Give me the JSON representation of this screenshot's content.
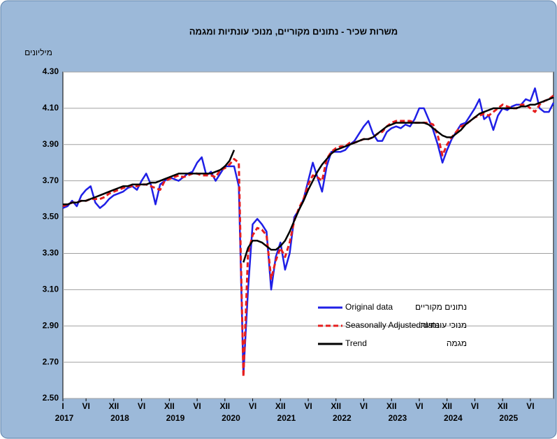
{
  "chart_data": {
    "type": "line",
    "title": "משרות שכיר - נתונים מקוריים, מנוכי עונתיות ומגמה",
    "y_unit": "מיליונים",
    "x": [
      "2017-01",
      "2017-02",
      "2017-03",
      "2017-04",
      "2017-05",
      "2017-06",
      "2017-07",
      "2017-08",
      "2017-09",
      "2017-10",
      "2017-11",
      "2017-12",
      "2018-01",
      "2018-02",
      "2018-03",
      "2018-04",
      "2018-05",
      "2018-06",
      "2018-07",
      "2018-08",
      "2018-09",
      "2018-10",
      "2018-11",
      "2018-12",
      "2019-01",
      "2019-02",
      "2019-03",
      "2019-04",
      "2019-05",
      "2019-06",
      "2019-07",
      "2019-08",
      "2019-09",
      "2019-10",
      "2019-11",
      "2019-12",
      "2020-01",
      "2020-02",
      "2020-03",
      "2020-04",
      "2020-05",
      "2020-06",
      "2020-07",
      "2020-08",
      "2020-09",
      "2020-10",
      "2020-11",
      "2020-12",
      "2021-01",
      "2021-02",
      "2021-03",
      "2021-04",
      "2021-05",
      "2021-06",
      "2021-07",
      "2021-08",
      "2021-09",
      "2021-10",
      "2021-11",
      "2021-12",
      "2022-01",
      "2022-02",
      "2022-03",
      "2022-04",
      "2022-05",
      "2022-06",
      "2022-07",
      "2022-08",
      "2022-09",
      "2022-10",
      "2022-11",
      "2022-12",
      "2023-01",
      "2023-02",
      "2023-03",
      "2023-04",
      "2023-05",
      "2023-06",
      "2023-07",
      "2023-08",
      "2023-09",
      "2023-10",
      "2023-11",
      "2023-12",
      "2024-01",
      "2024-02",
      "2024-03",
      "2024-04",
      "2024-05",
      "2024-06",
      "2024-07",
      "2024-08",
      "2024-09",
      "2024-10",
      "2024-11",
      "2024-12",
      "2025-01",
      "2025-02",
      "2025-03",
      "2025-04",
      "2025-05",
      "2025-06",
      "2025-07",
      "2025-08",
      "2025-09",
      "2025-10",
      "2025-11"
    ],
    "xticks": [
      {
        "value": "2017-01",
        "label": "I"
      },
      {
        "value": "2017-06",
        "label": "VI"
      },
      {
        "value": "2017-12",
        "label": "XII"
      },
      {
        "value": "2018-06",
        "label": "VI"
      },
      {
        "value": "2018-12",
        "label": "XII"
      },
      {
        "value": "2019-06",
        "label": "VI"
      },
      {
        "value": "2019-12",
        "label": "XII"
      },
      {
        "value": "2020-06",
        "label": "VI"
      },
      {
        "value": "2020-12",
        "label": "XII"
      },
      {
        "value": "2021-06",
        "label": "VI"
      },
      {
        "value": "2021-12",
        "label": "XII"
      },
      {
        "value": "2022-06",
        "label": "VI"
      },
      {
        "value": "2022-12",
        "label": "XII"
      },
      {
        "value": "2023-06",
        "label": "VI"
      },
      {
        "value": "2023-12",
        "label": "XII"
      },
      {
        "value": "2024-06",
        "label": "VI"
      },
      {
        "value": "2024-12",
        "label": "XII"
      },
      {
        "value": "2025-06",
        "label": "VI"
      }
    ],
    "year_labels": [
      {
        "value": "2017-01",
        "label": "2017"
      },
      {
        "value": "2018-01",
        "label": "2018"
      },
      {
        "value": "2019-01",
        "label": "2019"
      },
      {
        "value": "2020-01",
        "label": "2020"
      },
      {
        "value": "2021-01",
        "label": "2021"
      },
      {
        "value": "2022-01",
        "label": "2022"
      },
      {
        "value": "2023-01",
        "label": "2023"
      },
      {
        "value": "2024-01",
        "label": "2024"
      },
      {
        "value": "2025-01",
        "label": "2025"
      }
    ],
    "ylim": [
      2.5,
      4.3
    ],
    "yticks": [
      {
        "value": 2.5,
        "label": "2.50"
      },
      {
        "value": 2.7,
        "label": "2.70"
      },
      {
        "value": 2.9,
        "label": "2.90"
      },
      {
        "value": 3.1,
        "label": "3.10"
      },
      {
        "value": 3.3,
        "label": "3.30"
      },
      {
        "value": 3.5,
        "label": "3.50"
      },
      {
        "value": 3.7,
        "label": "3.70"
      },
      {
        "value": 3.9,
        "label": "3.90"
      },
      {
        "value": 4.1,
        "label": "4.10"
      },
      {
        "value": 4.3,
        "label": "4.30"
      }
    ],
    "grid": true,
    "series": [
      {
        "name": "Original data",
        "name_he": "נתונים מקוריים",
        "color": "#1f1fe6",
        "dash": false,
        "values": [
          3.55,
          3.56,
          3.59,
          3.56,
          3.62,
          3.65,
          3.67,
          3.58,
          3.55,
          3.57,
          3.6,
          3.62,
          3.63,
          3.64,
          3.66,
          3.67,
          3.65,
          3.7,
          3.74,
          3.68,
          3.57,
          3.68,
          3.7,
          3.72,
          3.71,
          3.7,
          3.72,
          3.74,
          3.75,
          3.8,
          3.83,
          3.73,
          3.75,
          3.7,
          3.74,
          3.78,
          3.78,
          3.78,
          3.67,
          2.63,
          3.1,
          3.46,
          3.49,
          3.46,
          3.42,
          3.1,
          3.28,
          3.36,
          3.21,
          3.3,
          3.5,
          3.54,
          3.6,
          3.7,
          3.8,
          3.72,
          3.64,
          3.78,
          3.86,
          3.86,
          3.86,
          3.87,
          3.9,
          3.92,
          3.96,
          4.0,
          4.03,
          3.96,
          3.92,
          3.92,
          3.97,
          3.99,
          4.0,
          3.99,
          4.01,
          4.0,
          4.04,
          4.1,
          4.1,
          4.04,
          3.98,
          3.9,
          3.8,
          3.87,
          3.93,
          3.97,
          4.01,
          4.02,
          4.06,
          4.1,
          4.15,
          4.04,
          4.06,
          3.98,
          4.06,
          4.1,
          4.09,
          4.11,
          4.12,
          4.12,
          4.15,
          4.14,
          4.21,
          4.1,
          4.08,
          4.08,
          4.13
        ]
      },
      {
        "name": "Seasonally Adjusted data",
        "name_he": "מנוכי עונתיות",
        "color": "#e61e1e",
        "dash": true,
        "values": [
          3.56,
          3.57,
          3.58,
          3.58,
          3.59,
          3.59,
          3.6,
          3.6,
          3.6,
          3.61,
          3.63,
          3.64,
          3.65,
          3.66,
          3.67,
          3.67,
          3.67,
          3.68,
          3.68,
          3.67,
          3.66,
          3.65,
          3.7,
          3.71,
          3.72,
          3.73,
          3.72,
          3.73,
          3.74,
          3.74,
          3.73,
          3.73,
          3.73,
          3.72,
          3.76,
          3.77,
          3.79,
          3.82,
          3.8,
          2.62,
          3.3,
          3.4,
          3.44,
          3.43,
          3.4,
          3.16,
          3.26,
          3.33,
          3.28,
          3.36,
          3.48,
          3.55,
          3.6,
          3.68,
          3.73,
          3.72,
          3.7,
          3.82,
          3.86,
          3.88,
          3.89,
          3.89,
          3.91,
          3.91,
          3.92,
          3.93,
          3.93,
          3.94,
          3.96,
          3.97,
          4.0,
          4.02,
          4.03,
          4.03,
          4.03,
          4.03,
          4.02,
          4.02,
          4.02,
          4.02,
          4.01,
          3.95,
          3.84,
          3.9,
          3.94,
          3.97,
          4.0,
          4.01,
          4.03,
          4.05,
          4.06,
          4.07,
          4.06,
          4.08,
          4.1,
          4.12,
          4.11,
          4.1,
          4.1,
          4.12,
          4.12,
          4.1,
          4.08,
          4.12,
          4.14,
          4.15,
          4.17
        ]
      },
      {
        "name": "Trend",
        "name_he": "מגמה",
        "color": "#000000",
        "dash": false,
        "values": [
          3.57,
          3.57,
          3.58,
          3.58,
          3.59,
          3.59,
          3.6,
          3.61,
          3.62,
          3.63,
          3.64,
          3.65,
          3.66,
          3.67,
          3.67,
          3.68,
          3.68,
          3.68,
          3.68,
          3.69,
          3.69,
          3.7,
          3.71,
          3.72,
          3.73,
          3.74,
          3.74,
          3.74,
          3.74,
          3.74,
          3.74,
          3.74,
          3.74,
          3.75,
          3.76,
          3.78,
          3.81,
          3.87,
          null,
          3.25,
          3.33,
          3.37,
          3.37,
          3.36,
          3.34,
          3.32,
          3.32,
          3.34,
          3.37,
          3.42,
          3.48,
          3.54,
          3.59,
          3.65,
          3.7,
          3.75,
          3.79,
          3.82,
          3.85,
          3.87,
          3.88,
          3.89,
          3.9,
          3.91,
          3.92,
          3.93,
          3.93,
          3.94,
          3.96,
          3.98,
          4.0,
          4.01,
          4.02,
          4.02,
          4.02,
          4.02,
          4.02,
          4.02,
          4.02,
          4.01,
          3.99,
          3.97,
          3.95,
          3.94,
          3.94,
          3.96,
          3.98,
          4.01,
          4.03,
          4.05,
          4.07,
          4.08,
          4.09,
          4.1,
          4.1,
          4.1,
          4.1,
          4.1,
          4.1,
          4.11,
          4.11,
          4.12,
          4.12,
          4.13,
          4.14,
          4.15,
          4.16
        ]
      }
    ]
  }
}
